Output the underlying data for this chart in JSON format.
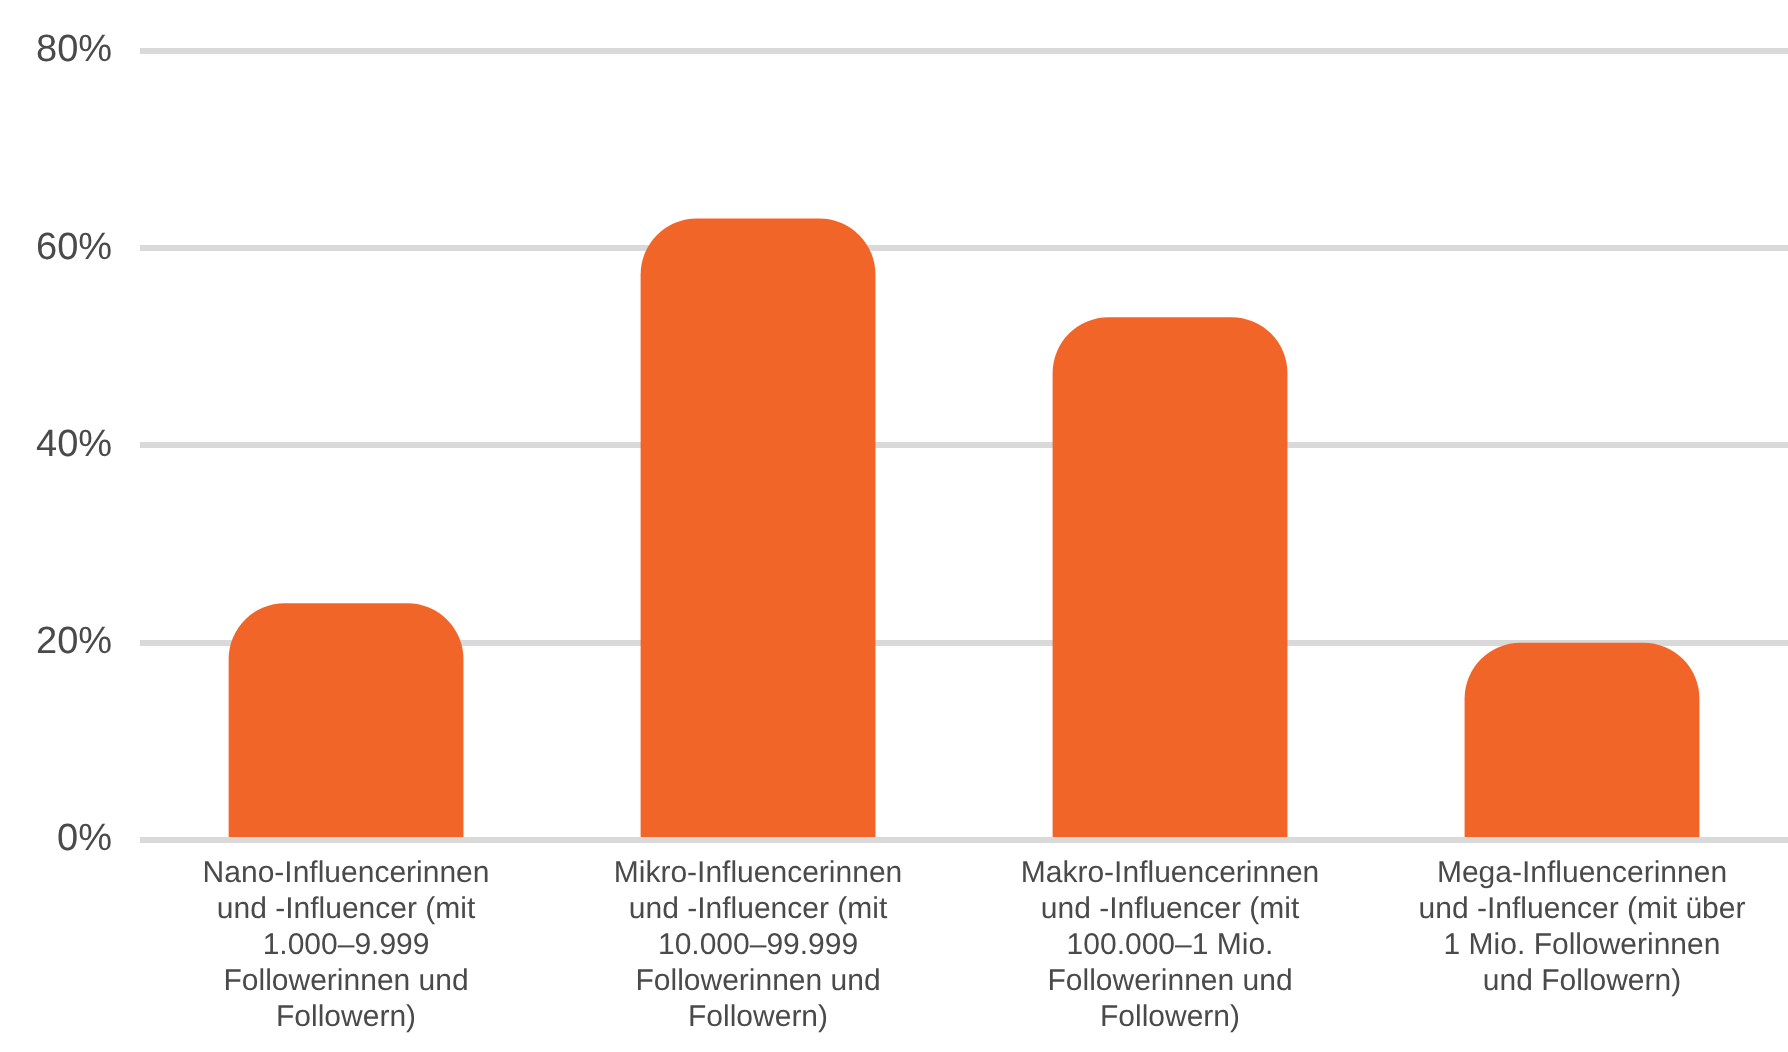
{
  "chart_data": {
    "type": "bar",
    "categories": [
      "Nano-Influencerinnen und -Influencer (mit 1.000–9.999 Followerinnen und Followern)",
      "Mikro-Influencerinnen und -Influencer (mit 10.000–99.999 Followerinnen und Followern)",
      "Makro-Influencerinnen und -Influencer (mit 100.000–1 Mio. Followerinnen und Followern)",
      "Mega-Influencerinnen und -Influencer (mit über 1 Mio. Followerinnen und Followern)"
    ],
    "values": [
      24,
      63,
      53,
      20
    ],
    "color": "#f26529",
    "ylim": [
      0,
      80
    ],
    "yticks": [
      {
        "value": 0,
        "label": "0%"
      },
      {
        "value": 20,
        "label": "20%"
      },
      {
        "value": 40,
        "label": "40%"
      },
      {
        "value": 60,
        "label": "60%"
      },
      {
        "value": 80,
        "label": "80%"
      }
    ],
    "grid": "y",
    "legend": false
  }
}
